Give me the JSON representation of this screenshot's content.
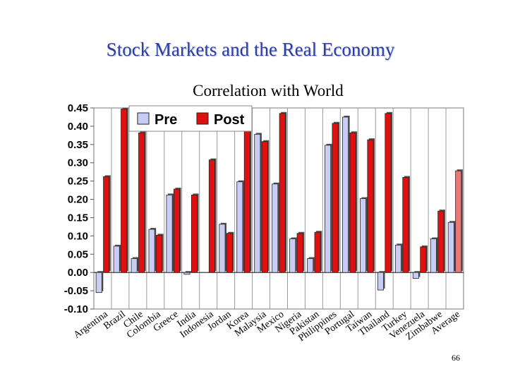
{
  "slide": {
    "title": "Stock Markets and the Real Economy",
    "page_number": "66"
  },
  "chart_data": {
    "type": "bar",
    "title": "Correlation with World",
    "xlabel": "",
    "ylabel": "",
    "ylim": [
      -0.1,
      0.45
    ],
    "yticks": [
      "0.45",
      "0.40",
      "0.35",
      "0.30",
      "0.25",
      "0.20",
      "0.15",
      "0.10",
      "0.05",
      "0.00",
      "-0.05",
      "-0.10"
    ],
    "grid": true,
    "legend_position": "top-left",
    "categories": [
      "Argentina",
      "Brazil",
      "Chile",
      "Colombia",
      "Greece",
      "India",
      "Indonesia",
      "Jordan",
      "Korea",
      "Malaysia",
      "Mexico",
      "Nigeria",
      "Pakistan",
      "Philippines",
      "Portugal",
      "Taiwan",
      "Thailand",
      "Turkey",
      "Venezuela",
      "Zimbabwe",
      "Average"
    ],
    "series": [
      {
        "name": "Pre",
        "color": "#c9cdf5",
        "values": [
          -0.055,
          0.072,
          0.038,
          0.118,
          0.212,
          -0.005,
          null,
          0.132,
          0.248,
          0.378,
          0.242,
          0.092,
          0.038,
          0.348,
          0.425,
          0.202,
          -0.048,
          0.075,
          -0.016,
          0.092,
          0.137
        ]
      },
      {
        "name": "Post",
        "color": "#e01010",
        "values": [
          0.262,
          0.447,
          0.382,
          0.102,
          0.228,
          0.212,
          0.308,
          0.107,
          0.452,
          0.358,
          0.435,
          0.107,
          0.11,
          0.408,
          0.382,
          0.363,
          0.435,
          0.26,
          0.07,
          0.168,
          0.278
        ]
      }
    ],
    "highlight": {
      "category": "Average",
      "series": "Post",
      "color": "#e87878"
    }
  }
}
